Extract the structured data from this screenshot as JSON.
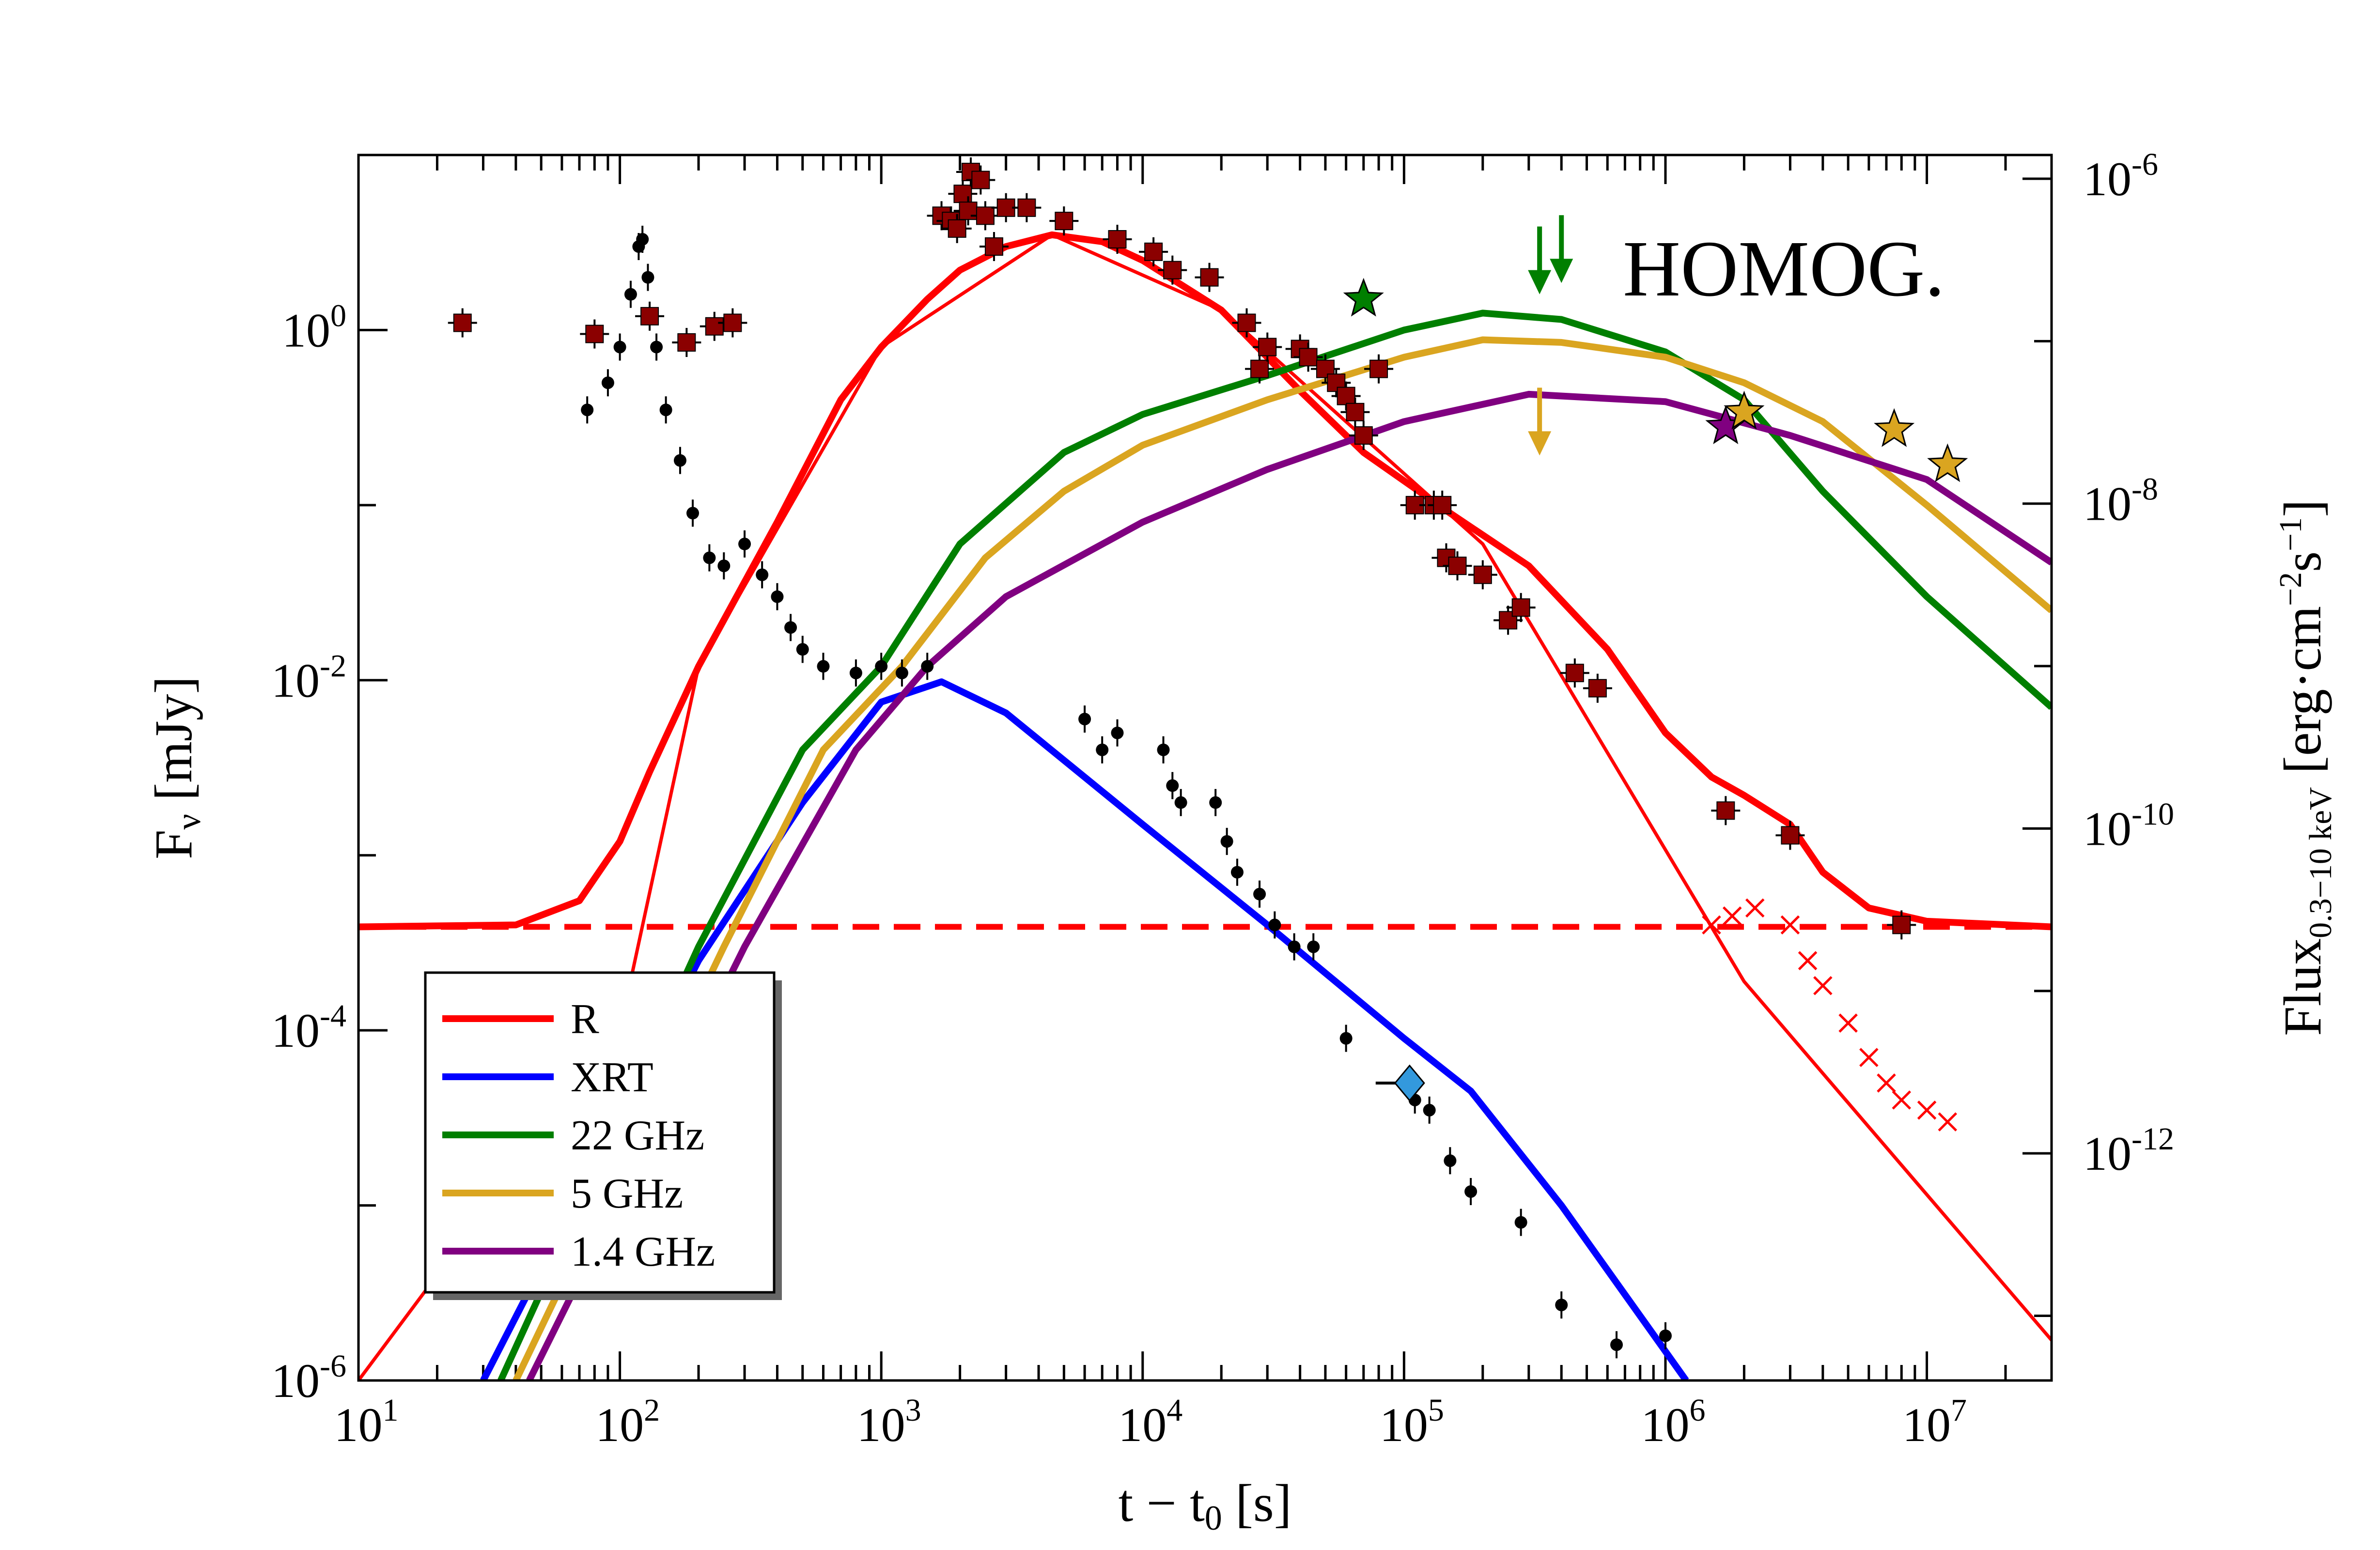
{
  "chart_data": {
    "type": "line",
    "annotation": "HOMOG.",
    "xlabel": {
      "main": "t − t",
      "sub": "0",
      "unit": " [s]"
    },
    "ylabel_left": {
      "main": "F",
      "sub": "ν",
      "unit": " [mJy]"
    },
    "ylabel_right": {
      "main": "Flux",
      "sub": "0.3−10 keV",
      "unit": " [erg·cm",
      "sup1": "−2",
      "mid": "s",
      "sup2": "−1",
      "end": "]"
    },
    "x_scale": "log",
    "xlim": [
      10,
      30000000
    ],
    "ylim_left": [
      1e-06,
      10
    ],
    "ylim_right": [
      4e-14,
      1.4e-06
    ],
    "y_scale": "log",
    "x_ticks": [
      {
        "value": 10,
        "base": "10",
        "exp": "1"
      },
      {
        "value": 100,
        "base": "10",
        "exp": "2"
      },
      {
        "value": 1000,
        "base": "10",
        "exp": "3"
      },
      {
        "value": 10000,
        "base": "10",
        "exp": "4"
      },
      {
        "value": 100000,
        "base": "10",
        "exp": "5"
      },
      {
        "value": 1000000,
        "base": "10",
        "exp": "6"
      },
      {
        "value": 10000000,
        "base": "10",
        "exp": "7"
      }
    ],
    "y_left_ticks": [
      {
        "value": 1,
        "base": "10",
        "exp": "0"
      },
      {
        "value": 0.01,
        "base": "10",
        "exp": "-2"
      },
      {
        "value": 0.0001,
        "base": "10",
        "exp": "-4"
      },
      {
        "value": 1e-06,
        "base": "10",
        "exp": "-6"
      }
    ],
    "y_right_ticks": [
      {
        "value": 1e-06,
        "base": "10",
        "exp": "-6"
      },
      {
        "value": 1e-08,
        "base": "10",
        "exp": "-8"
      },
      {
        "value": 1e-10,
        "base": "10",
        "exp": "-10"
      },
      {
        "value": 1e-12,
        "base": "10",
        "exp": "-12"
      }
    ],
    "legend": {
      "position": "lower-left",
      "entries": [
        "R",
        "XRT",
        "22 GHz",
        "5 GHz",
        "1.4 GHz"
      ]
    },
    "colors": {
      "R": "#ff0000",
      "XRT": "#0000ff",
      "22 GHz": "#007f00",
      "5 GHz": "#daa520",
      "1.4 GHz": "#800080",
      "optical_points": "#8b0000",
      "xrt_points": "#000000",
      "diamond": "#3399dd"
    },
    "series": [
      {
        "name": "R",
        "style": "model",
        "points": [
          [
            10,
            0.00039
          ],
          [
            40,
            0.0004
          ],
          [
            70,
            0.00055
          ],
          [
            100,
            0.0012
          ],
          [
            130,
            0.003
          ],
          [
            200,
            0.012
          ],
          [
            400,
            0.08
          ],
          [
            700,
            0.4
          ],
          [
            1000,
            0.8
          ],
          [
            1500,
            1.5
          ],
          [
            2000,
            2.2
          ],
          [
            3000,
            3.0
          ],
          [
            4500,
            3.5
          ],
          [
            7000,
            3.2
          ],
          [
            10000,
            2.5
          ],
          [
            20000,
            1.3
          ],
          [
            40000,
            0.45
          ],
          [
            70000,
            0.2
          ],
          [
            150000,
            0.09
          ],
          [
            300000,
            0.045
          ],
          [
            600000,
            0.015
          ],
          [
            1000000,
            0.005
          ],
          [
            1500000,
            0.0028
          ],
          [
            2000000,
            0.0022
          ],
          [
            3000000,
            0.0015
          ],
          [
            4000000,
            0.0008
          ],
          [
            6000000,
            0.0005
          ],
          [
            10000000,
            0.00042
          ],
          [
            30000000,
            0.00039
          ]
        ]
      },
      {
        "name": "R (afterglow only)",
        "style": "thin",
        "points": [
          [
            10,
            1e-06
          ],
          [
            100,
            0.0001
          ],
          [
            200,
            0.012
          ],
          [
            1000,
            0.8
          ],
          [
            4500,
            3.5
          ],
          [
            20000,
            1.3
          ],
          [
            200000,
            0.06
          ],
          [
            2000000,
            0.00019
          ],
          [
            30000000,
            1.7e-06
          ]
        ]
      },
      {
        "name": "R (host level)",
        "style": "dashed",
        "points": [
          [
            10,
            0.00039
          ],
          [
            30000000,
            0.00039
          ]
        ]
      },
      {
        "name": "XRT",
        "style": "model",
        "points": [
          [
            30,
            1e-06
          ],
          [
            200,
            0.00025
          ],
          [
            500,
            0.002
          ],
          [
            1000,
            0.0075
          ],
          [
            1700,
            0.0098
          ],
          [
            3000,
            0.0065
          ],
          [
            10000,
            0.0015
          ],
          [
            30000,
            0.0004
          ],
          [
            100000,
            9e-05
          ],
          [
            180000,
            4.5e-05
          ],
          [
            400000,
            1e-05
          ],
          [
            1200000,
            1e-06
          ]
        ]
      },
      {
        "name": "22 GHz",
        "style": "model",
        "points": [
          [
            35,
            1e-06
          ],
          [
            200,
            0.0003
          ],
          [
            500,
            0.004
          ],
          [
            1000,
            0.012
          ],
          [
            2000,
            0.06
          ],
          [
            5000,
            0.2
          ],
          [
            10000,
            0.33
          ],
          [
            30000,
            0.55
          ],
          [
            100000,
            1.0
          ],
          [
            200000,
            1.25
          ],
          [
            400000,
            1.15
          ],
          [
            1000000,
            0.75
          ],
          [
            2000000,
            0.4
          ],
          [
            4000000,
            0.12
          ],
          [
            10000000,
            0.03
          ],
          [
            30000000,
            0.007
          ]
        ]
      },
      {
        "name": "5 GHz",
        "style": "model",
        "points": [
          [
            40,
            1e-06
          ],
          [
            250,
            0.0003
          ],
          [
            600,
            0.004
          ],
          [
            1200,
            0.012
          ],
          [
            2500,
            0.05
          ],
          [
            5000,
            0.12
          ],
          [
            10000,
            0.22
          ],
          [
            30000,
            0.4
          ],
          [
            100000,
            0.7
          ],
          [
            200000,
            0.88
          ],
          [
            400000,
            0.85
          ],
          [
            1000000,
            0.7
          ],
          [
            2000000,
            0.5
          ],
          [
            4000000,
            0.3
          ],
          [
            10000000,
            0.1
          ],
          [
            30000000,
            0.025
          ]
        ]
      },
      {
        "name": "1.4 GHz",
        "style": "model",
        "points": [
          [
            45,
            1e-06
          ],
          [
            300,
            0.0003
          ],
          [
            800,
            0.004
          ],
          [
            1500,
            0.012
          ],
          [
            3000,
            0.03
          ],
          [
            10000,
            0.08
          ],
          [
            30000,
            0.16
          ],
          [
            100000,
            0.3
          ],
          [
            300000,
            0.43
          ],
          [
            1000000,
            0.39
          ],
          [
            3000000,
            0.25
          ],
          [
            10000000,
            0.14
          ],
          [
            30000000,
            0.047
          ]
        ]
      },
      {
        "name": "R data",
        "style": "square-points",
        "points": [
          [
            25,
            1.1
          ],
          [
            80,
            0.95
          ],
          [
            130,
            1.2
          ],
          [
            180,
            0.85
          ],
          [
            230,
            1.05
          ],
          [
            270,
            1.1
          ],
          [
            1700,
            4.5
          ],
          [
            1850,
            4.2
          ],
          [
            1950,
            3.8
          ],
          [
            2050,
            6.0
          ],
          [
            2150,
            4.8
          ],
          [
            2200,
            8.0
          ],
          [
            2400,
            7.2
          ],
          [
            2500,
            4.5
          ],
          [
            2700,
            3.0
          ],
          [
            3000,
            5.0
          ],
          [
            3600,
            5.0
          ],
          [
            5000,
            4.2
          ],
          [
            8000,
            3.3
          ],
          [
            11000,
            2.8
          ],
          [
            13000,
            2.2
          ],
          [
            18000,
            2.0
          ],
          [
            25000,
            1.1
          ],
          [
            28000,
            0.6
          ],
          [
            30000,
            0.8
          ],
          [
            40000,
            0.78
          ],
          [
            43000,
            0.7
          ],
          [
            50000,
            0.6
          ],
          [
            55000,
            0.5
          ],
          [
            60000,
            0.42
          ],
          [
            65000,
            0.34
          ],
          [
            70000,
            0.25
          ],
          [
            80000,
            0.6
          ],
          [
            110000,
            0.1
          ],
          [
            130000,
            0.1
          ],
          [
            140000,
            0.1
          ],
          [
            145000,
            0.05
          ],
          [
            160000,
            0.045
          ],
          [
            200000,
            0.04
          ],
          [
            250000,
            0.022
          ],
          [
            280000,
            0.026
          ],
          [
            450000,
            0.011
          ],
          [
            550000,
            0.009
          ],
          [
            1700000,
            0.0018
          ],
          [
            3000000,
            0.0013
          ],
          [
            8000000,
            0.0004
          ]
        ]
      },
      {
        "name": "XRT data",
        "style": "dot-points",
        "points": [
          [
            75,
            0.35
          ],
          [
            90,
            0.5
          ],
          [
            100,
            0.8
          ],
          [
            110,
            1.6
          ],
          [
            118,
            3.0
          ],
          [
            122,
            3.3
          ],
          [
            128,
            2.0
          ],
          [
            138,
            0.8
          ],
          [
            150,
            0.35
          ],
          [
            170,
            0.18
          ],
          [
            190,
            0.09
          ],
          [
            220,
            0.05
          ],
          [
            250,
            0.045
          ],
          [
            300,
            0.06
          ],
          [
            350,
            0.04
          ],
          [
            400,
            0.03
          ],
          [
            450,
            0.02
          ],
          [
            500,
            0.015
          ],
          [
            600,
            0.012
          ],
          [
            800,
            0.011
          ],
          [
            1000,
            0.012
          ],
          [
            1200,
            0.011
          ],
          [
            1500,
            0.012
          ],
          [
            6000,
            0.006
          ],
          [
            7000,
            0.004
          ],
          [
            8000,
            0.005
          ],
          [
            12000,
            0.004
          ],
          [
            13000,
            0.0025
          ],
          [
            14000,
            0.002
          ],
          [
            19000,
            0.002
          ],
          [
            21000,
            0.0012
          ],
          [
            23000,
            0.0008
          ],
          [
            28000,
            0.0006
          ],
          [
            32000,
            0.0004
          ],
          [
            38000,
            0.0003
          ],
          [
            45000,
            0.0003
          ],
          [
            60000,
            9e-05
          ],
          [
            110000,
            4e-05
          ],
          [
            125000,
            3.5e-05
          ],
          [
            150000,
            1.8e-05
          ],
          [
            180000,
            1.2e-05
          ],
          [
            280000,
            8e-06
          ],
          [
            400000,
            2.7e-06
          ],
          [
            650000,
            1.6e-06
          ],
          [
            1000000,
            1.8e-06
          ]
        ]
      },
      {
        "name": "R late data",
        "style": "cross-points",
        "points": [
          [
            1500000,
            0.0004
          ],
          [
            1800000,
            0.00045
          ],
          [
            2200000,
            0.0005
          ],
          [
            3000000,
            0.0004
          ],
          [
            3500000,
            0.00025
          ],
          [
            4000000,
            0.00018
          ],
          [
            5000000,
            0.00011
          ],
          [
            6000000,
            7e-05
          ],
          [
            7000000,
            5e-05
          ],
          [
            8000000,
            4e-05
          ],
          [
            10000000,
            3.5e-05
          ],
          [
            12000000,
            3e-05
          ]
        ]
      },
      {
        "name": "XRT diamond",
        "style": "diamond",
        "points": [
          [
            105000,
            5e-05
          ]
        ]
      }
    ],
    "stars": [
      {
        "x": 70000,
        "y": 1.5,
        "color": "#007f00"
      },
      {
        "x": 1700000,
        "y": 0.28,
        "color": "#800080"
      },
      {
        "x": 2000000,
        "y": 0.34,
        "color": "#daa520"
      },
      {
        "x": 7500000,
        "y": 0.27,
        "color": "#daa520"
      },
      {
        "x": 12000000,
        "y": 0.17,
        "color": "#daa520"
      }
    ],
    "upper_limits": [
      {
        "x": 330000,
        "y": 2.5,
        "color": "#007f00"
      },
      {
        "x": 400000,
        "y": 2.9,
        "color": "#007f00"
      },
      {
        "x": 330000,
        "y": 0.3,
        "color": "#daa520"
      }
    ]
  }
}
